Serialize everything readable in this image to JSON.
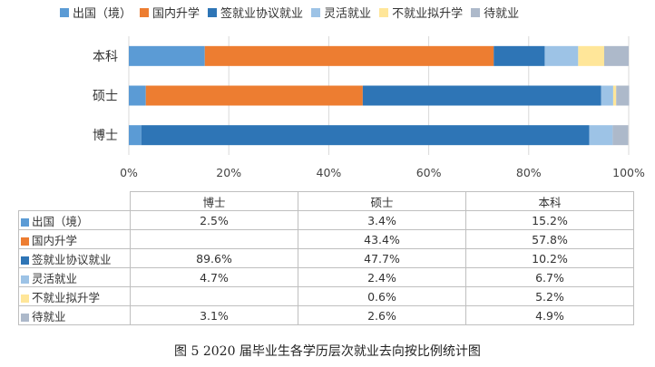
{
  "chart_data": {
    "type": "bar",
    "orientation": "horizontal",
    "stacked": "percent",
    "categories": [
      "本科",
      "硕士",
      "博士"
    ],
    "series": [
      {
        "name": "出国（境）",
        "color": "#5b9bd5",
        "values": [
          15.2,
          3.4,
          2.5
        ]
      },
      {
        "name": "国内升学",
        "color": "#ed7d31",
        "values": [
          57.8,
          43.4,
          null
        ]
      },
      {
        "name": "签就业协议就业",
        "color": "#2e75b6",
        "values": [
          10.2,
          47.7,
          89.6
        ]
      },
      {
        "name": "灵活就业",
        "color": "#9dc3e6",
        "values": [
          6.7,
          2.4,
          4.7
        ]
      },
      {
        "name": "不就业拟升学",
        "color": "#ffe699",
        "values": [
          5.2,
          0.6,
          null
        ]
      },
      {
        "name": "待就业",
        "color": "#adb9ca",
        "values": [
          4.9,
          2.6,
          3.1
        ]
      }
    ],
    "x_ticks": [
      "0%",
      "20%",
      "40%",
      "60%",
      "80%",
      "100%"
    ],
    "xlim": [
      0,
      100
    ],
    "grid": true,
    "legend_placement": "top"
  },
  "table": {
    "columns": [
      "博士",
      "硕士",
      "本科"
    ],
    "rows": [
      {
        "label": "出国（境）",
        "color": "#5b9bd5",
        "values": [
          "2.5%",
          "3.4%",
          "15.2%"
        ]
      },
      {
        "label": "国内升学",
        "color": "#ed7d31",
        "values": [
          "",
          "43.4%",
          "57.8%"
        ]
      },
      {
        "label": "签就业协议就业",
        "color": "#2e75b6",
        "values": [
          "89.6%",
          "47.7%",
          "10.2%"
        ]
      },
      {
        "label": "灵活就业",
        "color": "#9dc3e6",
        "values": [
          "4.7%",
          "2.4%",
          "6.7%"
        ]
      },
      {
        "label": "不就业拟升学",
        "color": "#ffe699",
        "values": [
          "",
          "0.6%",
          "5.2%"
        ]
      },
      {
        "label": "待就业",
        "color": "#adb9ca",
        "values": [
          "3.1%",
          "2.6%",
          "4.9%"
        ]
      }
    ]
  },
  "caption": "图 5   2020 届毕业生各学历层次就业去向按比例统计图"
}
